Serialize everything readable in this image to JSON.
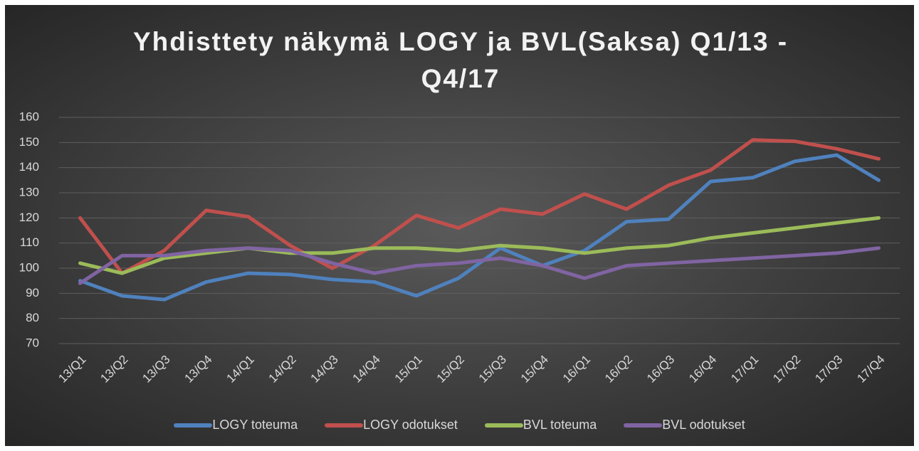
{
  "chart_data": {
    "type": "line",
    "title": "Yhdisttety näkymä LOGY ja BVL(Saksa) Q1/13 - Q4/17",
    "categories": [
      "13/Q1",
      "13/Q2",
      "13/Q3",
      "13/Q4",
      "14/Q1",
      "14/Q2",
      "14/Q3",
      "14/Q4",
      "15/Q1",
      "15/Q2",
      "15/Q3",
      "15/Q4",
      "16/Q1",
      "16/Q2",
      "16/Q3",
      "16/Q4",
      "17/Q1",
      "17/Q2",
      "17/Q3",
      "17/Q4"
    ],
    "series": [
      {
        "name": "LOGY toteuma",
        "color": "#4f81bd",
        "values": [
          95,
          89,
          87.5,
          94.5,
          98,
          97.5,
          95.5,
          94.5,
          89,
          96,
          108,
          101,
          107,
          118.5,
          119.5,
          134.5,
          136,
          142.5,
          145,
          135
        ]
      },
      {
        "name": "LOGY odotukset",
        "color": "#c0504d",
        "values": [
          120,
          98,
          107,
          123,
          120.5,
          109,
          100,
          109,
          121,
          116,
          123.5,
          121.5,
          129.5,
          123.5,
          133,
          139,
          151,
          150.5,
          147.5,
          143.5
        ]
      },
      {
        "name": "BVL toteuma",
        "color": "#9bbb59",
        "values": [
          102,
          98,
          104,
          106,
          108,
          106,
          106,
          108,
          108,
          107,
          109,
          108,
          106,
          108,
          109,
          112,
          114,
          116,
          118,
          120
        ]
      },
      {
        "name": "BVL odotukset",
        "color": "#8064a2",
        "values": [
          94,
          105,
          105,
          107,
          108,
          107,
          102,
          98,
          101,
          102,
          104,
          101,
          96,
          101,
          102,
          103,
          104,
          105,
          106,
          108
        ]
      }
    ],
    "ylim": [
      70,
      160
    ],
    "yticks": [
      70,
      80,
      90,
      100,
      110,
      120,
      130,
      140,
      150,
      160
    ],
    "grid": true,
    "legend": "bottom"
  }
}
